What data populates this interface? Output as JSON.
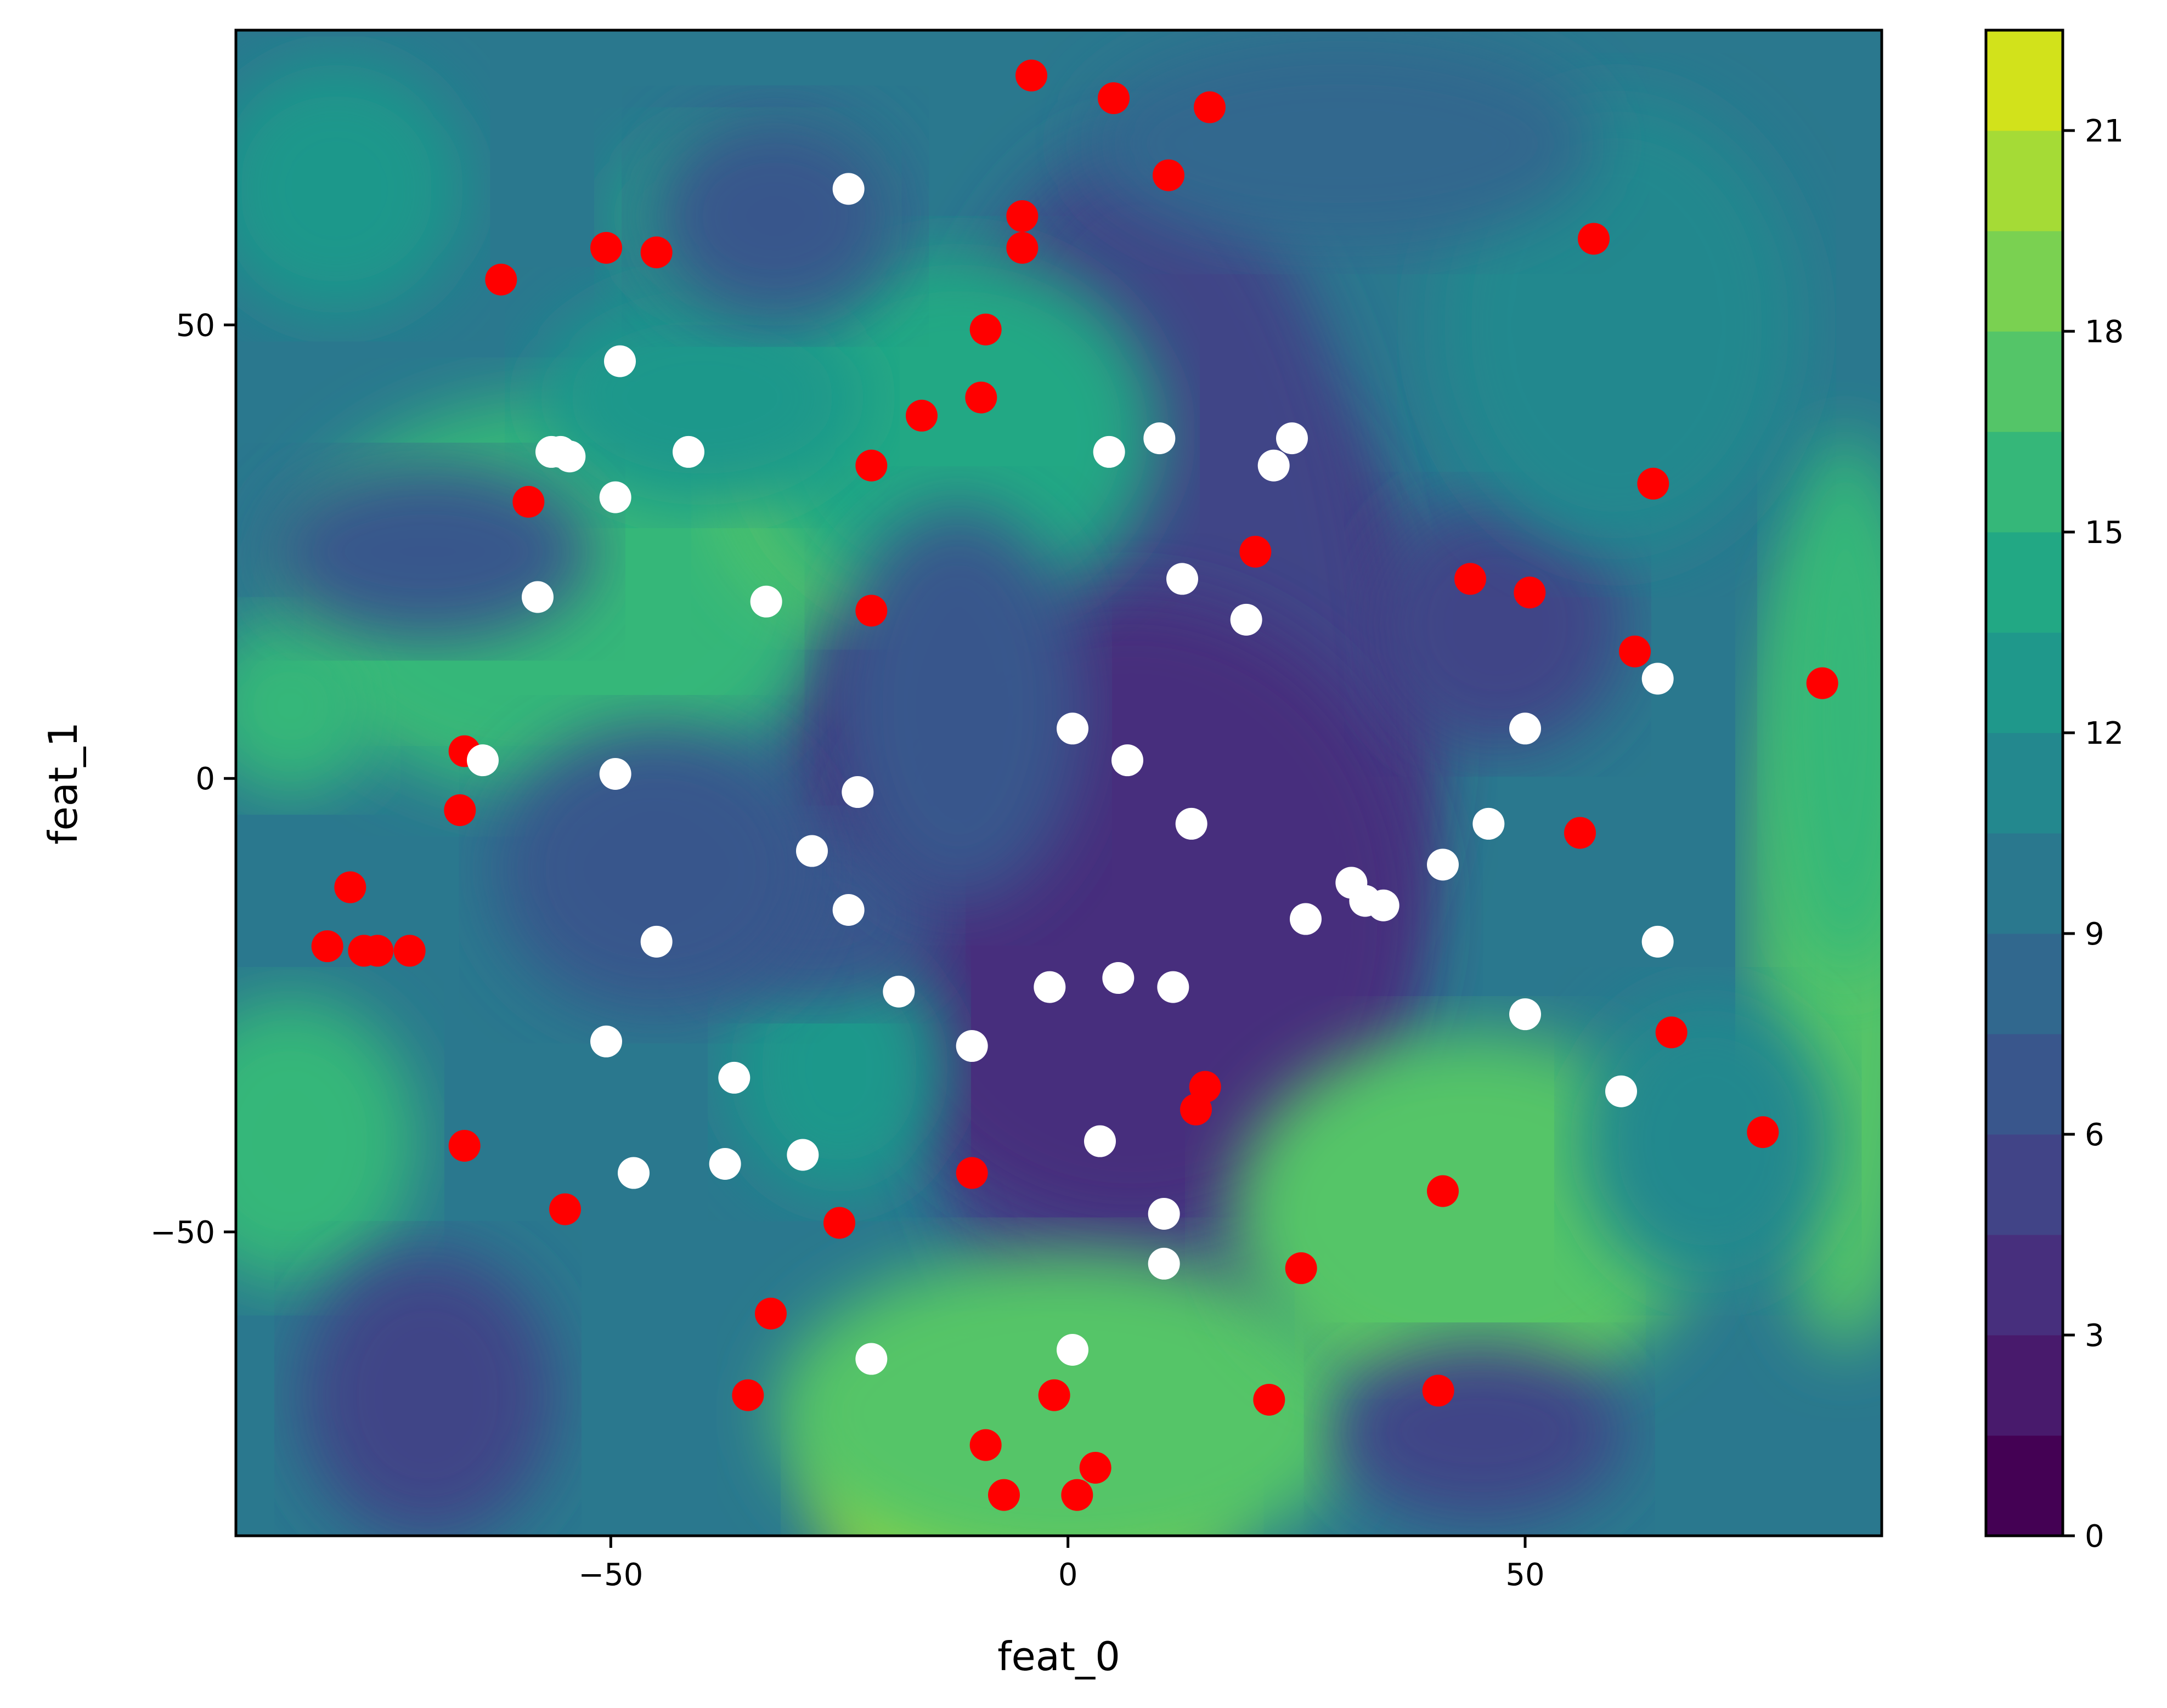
{
  "chart_data": {
    "type": "contourf_scatter",
    "xlabel": "feat_0",
    "ylabel": "feat_1",
    "xlim": [
      -91,
      89
    ],
    "ylim": [
      -83.5,
      82.5
    ],
    "xticks": [
      -50,
      0,
      50
    ],
    "xtick_labels": [
      "−50",
      "0",
      "50"
    ],
    "yticks": [
      -50,
      0,
      50
    ],
    "ytick_labels": [
      "−50",
      "0",
      "50"
    ],
    "grid": false,
    "colormap": "viridis",
    "colorbar": {
      "vmin": 0,
      "vmax": 22.5,
      "levels": [
        0,
        1.5,
        3,
        4.5,
        6,
        7.5,
        9,
        10.5,
        12,
        13.5,
        15,
        16.5,
        18,
        19.5,
        21,
        22.5
      ],
      "ticks": [
        0,
        3,
        6,
        9,
        12,
        15,
        18,
        21
      ],
      "tick_labels": [
        "0",
        "3",
        "6",
        "9",
        "12",
        "15",
        "18",
        "21"
      ]
    },
    "colors": {
      "red_series": "#ff0000",
      "white_series": "#ffffff",
      "viridis": [
        "#440154",
        "#481a6c",
        "#472f7d",
        "#414487",
        "#39568c",
        "#31688e",
        "#2a788e",
        "#23888e",
        "#1f988b",
        "#22a884",
        "#35b779",
        "#54c568",
        "#7ad151",
        "#a5db36",
        "#d2e21b",
        "#fde725"
      ]
    },
    "series": [
      {
        "color": "red",
        "points": [
          [
            -4,
            77.5
          ],
          [
            5,
            75
          ],
          [
            15.5,
            74
          ],
          [
            11,
            66.5
          ],
          [
            -5,
            62
          ],
          [
            -5,
            58.5
          ],
          [
            57.5,
            59.5
          ],
          [
            -50.5,
            58.5
          ],
          [
            -45,
            58
          ],
          [
            -62,
            55
          ],
          [
            -9,
            49.5
          ],
          [
            -9.5,
            42
          ],
          [
            -16,
            40
          ],
          [
            -21.5,
            34.5
          ],
          [
            -59,
            30.5
          ],
          [
            64,
            32.5
          ],
          [
            20.5,
            25
          ],
          [
            44,
            22
          ],
          [
            50.5,
            20.5
          ],
          [
            -21.5,
            18.5
          ],
          [
            62,
            14
          ],
          [
            82.5,
            10.5
          ],
          [
            -66,
            3
          ],
          [
            -66.5,
            -3.5
          ],
          [
            56,
            -6
          ],
          [
            -78.5,
            -12
          ],
          [
            -81,
            -18.5
          ],
          [
            -77,
            -19
          ],
          [
            -75.5,
            -19
          ],
          [
            -72,
            -19
          ],
          [
            66,
            -28
          ],
          [
            15,
            -34
          ],
          [
            14,
            -36.5
          ],
          [
            76,
            -39
          ],
          [
            -66,
            -40.5
          ],
          [
            -10.5,
            -43.5
          ],
          [
            41,
            -45.5
          ],
          [
            -55,
            -47.5
          ],
          [
            -25,
            -49
          ],
          [
            25.5,
            -54
          ],
          [
            -32.5,
            -59
          ],
          [
            40.5,
            -67.5
          ],
          [
            -35,
            -68
          ],
          [
            -1.5,
            -68
          ],
          [
            22,
            -68.5
          ],
          [
            -9,
            -73.5
          ],
          [
            3,
            -76
          ],
          [
            -7,
            -79
          ],
          [
            1,
            -79
          ]
        ]
      },
      {
        "color": "white",
        "points": [
          [
            -24,
            65
          ],
          [
            -49,
            46
          ],
          [
            -56.5,
            36
          ],
          [
            -55.5,
            36
          ],
          [
            -54.5,
            35.5
          ],
          [
            -41.5,
            36
          ],
          [
            4.5,
            36
          ],
          [
            10,
            37.5
          ],
          [
            24.5,
            37.5
          ],
          [
            22.5,
            34.5
          ],
          [
            -49.5,
            31
          ],
          [
            12.5,
            22
          ],
          [
            -58,
            20
          ],
          [
            -33,
            19.5
          ],
          [
            19.5,
            17.5
          ],
          [
            64.5,
            11
          ],
          [
            0.5,
            5.5
          ],
          [
            50,
            5.5
          ],
          [
            -64,
            2
          ],
          [
            6.5,
            2
          ],
          [
            -49.5,
            0.5
          ],
          [
            -23,
            -1.5
          ],
          [
            13.5,
            -5
          ],
          [
            46,
            -5
          ],
          [
            -28,
            -8
          ],
          [
            41,
            -9.5
          ],
          [
            31,
            -11.5
          ],
          [
            32.5,
            -13.5
          ],
          [
            34.5,
            -14
          ],
          [
            -24,
            -14.5
          ],
          [
            26,
            -15.5
          ],
          [
            -45,
            -18
          ],
          [
            64.5,
            -18
          ],
          [
            -2,
            -23
          ],
          [
            5.5,
            -22
          ],
          [
            11.5,
            -23
          ],
          [
            -18.5,
            -23.5
          ],
          [
            50,
            -26
          ],
          [
            -50.5,
            -29
          ],
          [
            -10.5,
            -29.5
          ],
          [
            -36.5,
            -33
          ],
          [
            60.5,
            -34.5
          ],
          [
            3.5,
            -40
          ],
          [
            -29,
            -41.5
          ],
          [
            -37.5,
            -42.5
          ],
          [
            -47.5,
            -43.5
          ],
          [
            10.5,
            -48
          ],
          [
            10.5,
            -53.5
          ],
          [
            0.5,
            -63
          ],
          [
            -21.5,
            -64
          ]
        ]
      }
    ]
  }
}
